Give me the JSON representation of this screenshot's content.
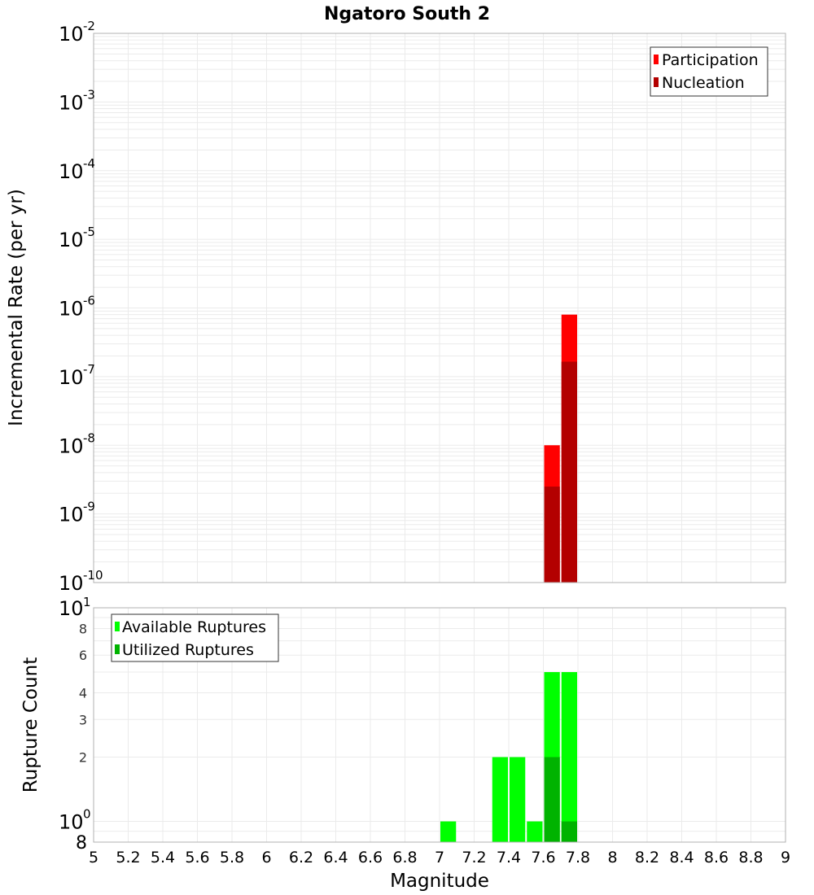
{
  "chart_data": [
    {
      "type": "bar",
      "title": "Ngatoro South 2",
      "xlabel": "Magnitude",
      "ylabel": "Incremental Rate (per yr)",
      "yscale": "log",
      "ylim": [
        1e-10,
        0.01
      ],
      "xlim": [
        5,
        9
      ],
      "grid": true,
      "legend_position": "upper right",
      "y_tick_labels": [
        "10^-2",
        "10^-3",
        "10^-4",
        "10^-5",
        "10^-6",
        "10^-7",
        "10^-8",
        "10^-9",
        "10^-10"
      ],
      "bin_width": 0.1,
      "series": [
        {
          "name": "Participation",
          "color": "#ff0000",
          "x": [
            7.65,
            7.75
          ],
          "values": [
            1e-08,
            8e-07
          ]
        },
        {
          "name": "Nucleation",
          "color": "#b30000",
          "x": [
            7.65,
            7.75
          ],
          "values": [
            2.5e-09,
            1.65e-07
          ]
        }
      ]
    },
    {
      "type": "bar",
      "xlabel": "Magnitude",
      "ylabel": "Rupture Count",
      "yscale": "log",
      "ylim": [
        0.8,
        10
      ],
      "xlim": [
        5,
        9
      ],
      "grid": true,
      "legend_position": "upper left",
      "y_tick_labels": [
        "8",
        "10^0",
        "2",
        "3",
        "4",
        "6",
        "8",
        "10^1"
      ],
      "x_tick_labels": [
        "5",
        "5.2",
        "5.4",
        "5.6",
        "5.8",
        "6",
        "6.2",
        "6.4",
        "6.6",
        "6.8",
        "7",
        "7.2",
        "7.4",
        "7.6",
        "7.8",
        "8",
        "8.2",
        "8.4",
        "8.6",
        "8.8",
        "9"
      ],
      "bin_width": 0.1,
      "series": [
        {
          "name": "Available Ruptures",
          "color": "#00ff00",
          "x": [
            7.05,
            7.35,
            7.45,
            7.55,
            7.65,
            7.75
          ],
          "values": [
            1,
            2,
            2,
            1,
            5,
            5
          ]
        },
        {
          "name": "Utilized Ruptures",
          "color": "#00b300",
          "x": [
            7.65,
            7.75
          ],
          "values": [
            2,
            1
          ]
        }
      ]
    }
  ],
  "title": "Ngatoro South 2",
  "top": {
    "ylabel": "Incremental Rate (per yr)",
    "legend": [
      "Participation",
      "Nucleation"
    ],
    "ticks": [
      {
        "base": "10",
        "exp": "-2"
      },
      {
        "base": "10",
        "exp": "-3"
      },
      {
        "base": "10",
        "exp": "-4"
      },
      {
        "base": "10",
        "exp": "-5"
      },
      {
        "base": "10",
        "exp": "-6"
      },
      {
        "base": "10",
        "exp": "-7"
      },
      {
        "base": "10",
        "exp": "-8"
      },
      {
        "base": "10",
        "exp": "-9"
      },
      {
        "base": "10",
        "exp": "-10"
      }
    ]
  },
  "bottom": {
    "ylabel": "Rupture Count",
    "legend": [
      "Available Ruptures",
      "Utilized Ruptures"
    ],
    "major_ticks": [
      {
        "base": "10",
        "exp": "1"
      },
      {
        "base": "10",
        "exp": "0"
      }
    ],
    "minor_ticks": [
      "8",
      "6",
      "4",
      "3",
      "2"
    ],
    "bottom_tick": "8"
  },
  "xlabel": "Magnitude",
  "xticks": [
    "5",
    "5.2",
    "5.4",
    "5.6",
    "5.8",
    "6",
    "6.2",
    "6.4",
    "6.6",
    "6.8",
    "7",
    "7.2",
    "7.4",
    "7.6",
    "7.8",
    "8",
    "8.2",
    "8.4",
    "8.6",
    "8.8",
    "9"
  ],
  "colors": {
    "participation": "#ff0000",
    "nucleation": "#b30000",
    "available": "#00ff00",
    "utilized": "#00b300",
    "grid": "#ebebeb",
    "frame": "#b0b0b0"
  }
}
